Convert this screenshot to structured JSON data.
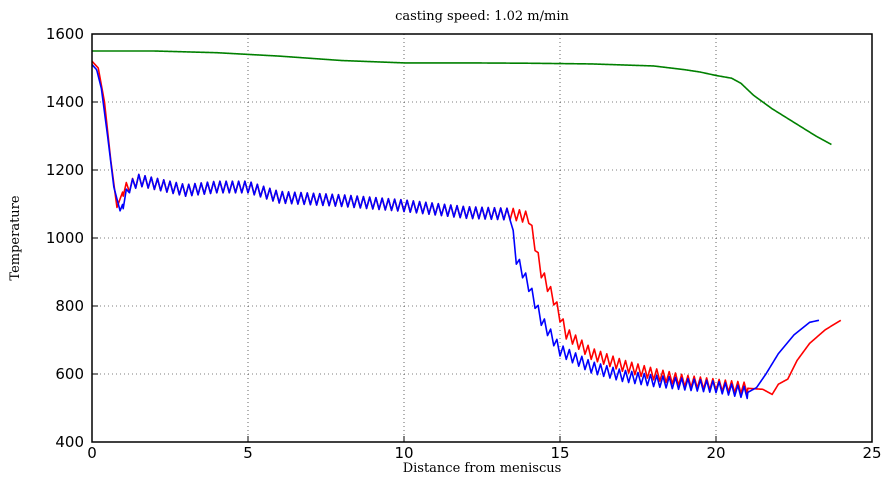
{
  "chart_data": {
    "type": "line",
    "title": "casting speed: 1.02 m/min",
    "xlabel": "Distance from meniscus",
    "ylabel": "Temperature",
    "xlim": [
      0,
      25
    ],
    "ylim": [
      400,
      1600
    ],
    "xticks": [
      0,
      5,
      10,
      15,
      20,
      25
    ],
    "yticks": [
      400,
      600,
      800,
      1000,
      1200,
      1400,
      1600
    ],
    "grid": true,
    "grid_style": "dotted",
    "series": [
      {
        "color": "#008000",
        "oscillation": null,
        "points": [
          [
            0,
            1550
          ],
          [
            2,
            1550
          ],
          [
            4,
            1545
          ],
          [
            6,
            1535
          ],
          [
            8,
            1522
          ],
          [
            10,
            1515
          ],
          [
            12,
            1515
          ],
          [
            14,
            1514
          ],
          [
            16,
            1512
          ],
          [
            18,
            1506
          ],
          [
            19,
            1495
          ],
          [
            19.5,
            1488
          ],
          [
            20,
            1478
          ],
          [
            20.5,
            1470
          ],
          [
            20.8,
            1455
          ],
          [
            21.2,
            1420
          ],
          [
            21.8,
            1380
          ],
          [
            22.5,
            1340
          ],
          [
            23.2,
            1300
          ],
          [
            23.7,
            1275
          ]
        ]
      },
      {
        "color": "#ff0000",
        "oscillation": {
          "from": 1.0,
          "to": 21.0,
          "period": 0.2,
          "amplitude": 17
        },
        "points": [
          [
            0,
            1520
          ],
          [
            0.2,
            1500
          ],
          [
            0.4,
            1400
          ],
          [
            0.6,
            1230
          ],
          [
            0.8,
            1090
          ],
          [
            1.0,
            1140
          ],
          [
            1.5,
            1170
          ],
          [
            2,
            1160
          ],
          [
            3,
            1140
          ],
          [
            4,
            1150
          ],
          [
            5,
            1150
          ],
          [
            6,
            1120
          ],
          [
            8,
            1110
          ],
          [
            10,
            1095
          ],
          [
            12,
            1075
          ],
          [
            13.5,
            1070
          ],
          [
            14.0,
            1060
          ],
          [
            14.4,
            900
          ],
          [
            14.8,
            820
          ],
          [
            15.2,
            720
          ],
          [
            16,
            660
          ],
          [
            17,
            625
          ],
          [
            18,
            600
          ],
          [
            19,
            580
          ],
          [
            20,
            568
          ],
          [
            21,
            558
          ],
          [
            21.5,
            555
          ],
          [
            21.8,
            540
          ],
          [
            22.0,
            570
          ],
          [
            22.3,
            585
          ],
          [
            22.6,
            640
          ],
          [
            23,
            690
          ],
          [
            23.5,
            730
          ],
          [
            24,
            758
          ]
        ]
      },
      {
        "color": "#0000ff",
        "oscillation": {
          "from": 1.0,
          "to": 21.0,
          "period": 0.2,
          "amplitude": 17
        },
        "points": [
          [
            0,
            1510
          ],
          [
            0.15,
            1495
          ],
          [
            0.3,
            1440
          ],
          [
            0.5,
            1300
          ],
          [
            0.7,
            1150
          ],
          [
            0.9,
            1080
          ],
          [
            1.2,
            1150
          ],
          [
            1.5,
            1170
          ],
          [
            2,
            1160
          ],
          [
            3,
            1140
          ],
          [
            4,
            1150
          ],
          [
            5,
            1150
          ],
          [
            6,
            1120
          ],
          [
            8,
            1110
          ],
          [
            10,
            1095
          ],
          [
            12,
            1075
          ],
          [
            13.4,
            1070
          ],
          [
            13.6,
            940
          ],
          [
            14.0,
            860
          ],
          [
            14.4,
            760
          ],
          [
            15,
            670
          ],
          [
            16,
            620
          ],
          [
            17,
            595
          ],
          [
            18,
            580
          ],
          [
            19,
            570
          ],
          [
            20,
            562
          ],
          [
            21,
            545
          ],
          [
            21.3,
            560
          ],
          [
            21.6,
            600
          ],
          [
            22,
            660
          ],
          [
            22.5,
            715
          ],
          [
            23,
            752
          ],
          [
            23.3,
            758
          ]
        ]
      }
    ]
  }
}
